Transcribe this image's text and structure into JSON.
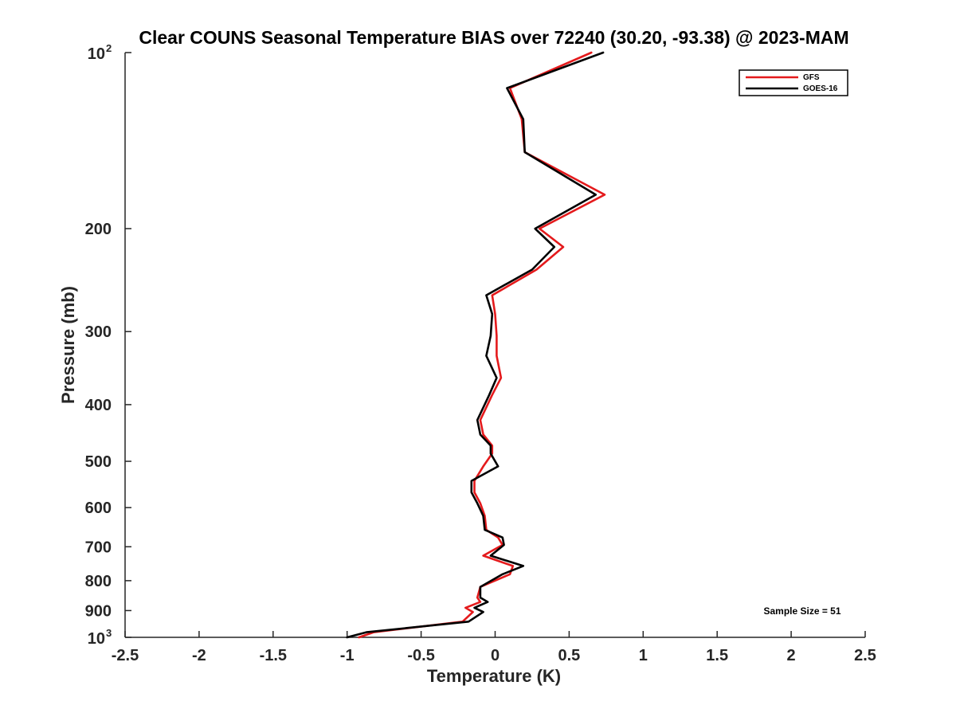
{
  "chart_data": {
    "type": "line",
    "title": "Clear COUNS Seasonal Temperature BIAS over 72240 (30.20, -93.38) @ 2023-MAM",
    "xlabel": "Temperature (K)",
    "ylabel": "Pressure (mb)",
    "xlim": [
      -2.5,
      2.5
    ],
    "ylim": [
      1000,
      100
    ],
    "y_scale": "log",
    "y_reversed": true,
    "grid": false,
    "legend_position": "top-right",
    "x_ticks": [
      -2.5,
      -2,
      -1.5,
      -1,
      -0.5,
      0,
      0.5,
      1,
      1.5,
      2,
      2.5
    ],
    "x_tick_labels": [
      "-2.5",
      "-2",
      "-1.5",
      "-1",
      "-0.5",
      "0",
      "0.5",
      "1",
      "1.5",
      "2",
      "2.5"
    ],
    "y_ticks": [
      {
        "value": 100,
        "base": "10",
        "exp": "2"
      },
      {
        "value": 200,
        "label": "200"
      },
      {
        "value": 300,
        "label": "300"
      },
      {
        "value": 400,
        "label": "400"
      },
      {
        "value": 500,
        "label": "500"
      },
      {
        "value": 600,
        "label": "600"
      },
      {
        "value": 700,
        "label": "700"
      },
      {
        "value": 800,
        "label": "800"
      },
      {
        "value": 900,
        "label": "900"
      },
      {
        "value": 1000,
        "base": "10",
        "exp": "3"
      }
    ],
    "annotation": "Sample Size = 51",
    "series": [
      {
        "name": "GFS",
        "color": "#e41a1c",
        "points": [
          [
            0.65,
            100
          ],
          [
            0.1,
            115
          ],
          [
            0.18,
            130
          ],
          [
            0.2,
            148
          ],
          [
            0.74,
            175
          ],
          [
            0.3,
            200
          ],
          [
            0.46,
            215
          ],
          [
            0.28,
            235
          ],
          [
            -0.02,
            260
          ],
          [
            0.0,
            280
          ],
          [
            0.01,
            305
          ],
          [
            0.01,
            330
          ],
          [
            0.04,
            360
          ],
          [
            -0.02,
            385
          ],
          [
            -0.1,
            425
          ],
          [
            -0.08,
            450
          ],
          [
            -0.02,
            470
          ],
          [
            -0.02,
            485
          ],
          [
            -0.08,
            510
          ],
          [
            -0.14,
            540
          ],
          [
            -0.14,
            565
          ],
          [
            -0.1,
            590
          ],
          [
            -0.07,
            620
          ],
          [
            -0.06,
            655
          ],
          [
            0.02,
            675
          ],
          [
            0.05,
            695
          ],
          [
            -0.08,
            725
          ],
          [
            0.12,
            755
          ],
          [
            0.1,
            780
          ],
          [
            -0.1,
            820
          ],
          [
            -0.12,
            855
          ],
          [
            -0.1,
            870
          ],
          [
            -0.2,
            890
          ],
          [
            -0.15,
            905
          ],
          [
            -0.22,
            940
          ],
          [
            -0.82,
            980
          ],
          [
            -0.92,
            1000
          ]
        ]
      },
      {
        "name": "GOES-16",
        "color": "#000000",
        "points": [
          [
            0.73,
            100
          ],
          [
            0.08,
            115
          ],
          [
            0.19,
            130
          ],
          [
            0.2,
            148
          ],
          [
            0.68,
            175
          ],
          [
            0.27,
            200
          ],
          [
            0.4,
            215
          ],
          [
            0.25,
            235
          ],
          [
            -0.06,
            260
          ],
          [
            -0.02,
            280
          ],
          [
            -0.03,
            305
          ],
          [
            -0.06,
            330
          ],
          [
            0.01,
            360
          ],
          [
            -0.04,
            385
          ],
          [
            -0.12,
            425
          ],
          [
            -0.1,
            450
          ],
          [
            -0.03,
            470
          ],
          [
            -0.03,
            485
          ],
          [
            0.02,
            510
          ],
          [
            -0.16,
            540
          ],
          [
            -0.16,
            565
          ],
          [
            -0.12,
            590
          ],
          [
            -0.08,
            620
          ],
          [
            -0.07,
            655
          ],
          [
            0.05,
            675
          ],
          [
            0.06,
            695
          ],
          [
            -0.03,
            725
          ],
          [
            0.19,
            755
          ],
          [
            0.05,
            780
          ],
          [
            -0.1,
            820
          ],
          [
            -0.1,
            855
          ],
          [
            -0.05,
            870
          ],
          [
            -0.14,
            890
          ],
          [
            -0.08,
            905
          ],
          [
            -0.18,
            940
          ],
          [
            -0.87,
            980
          ],
          [
            -1.0,
            1000
          ]
        ]
      }
    ]
  }
}
